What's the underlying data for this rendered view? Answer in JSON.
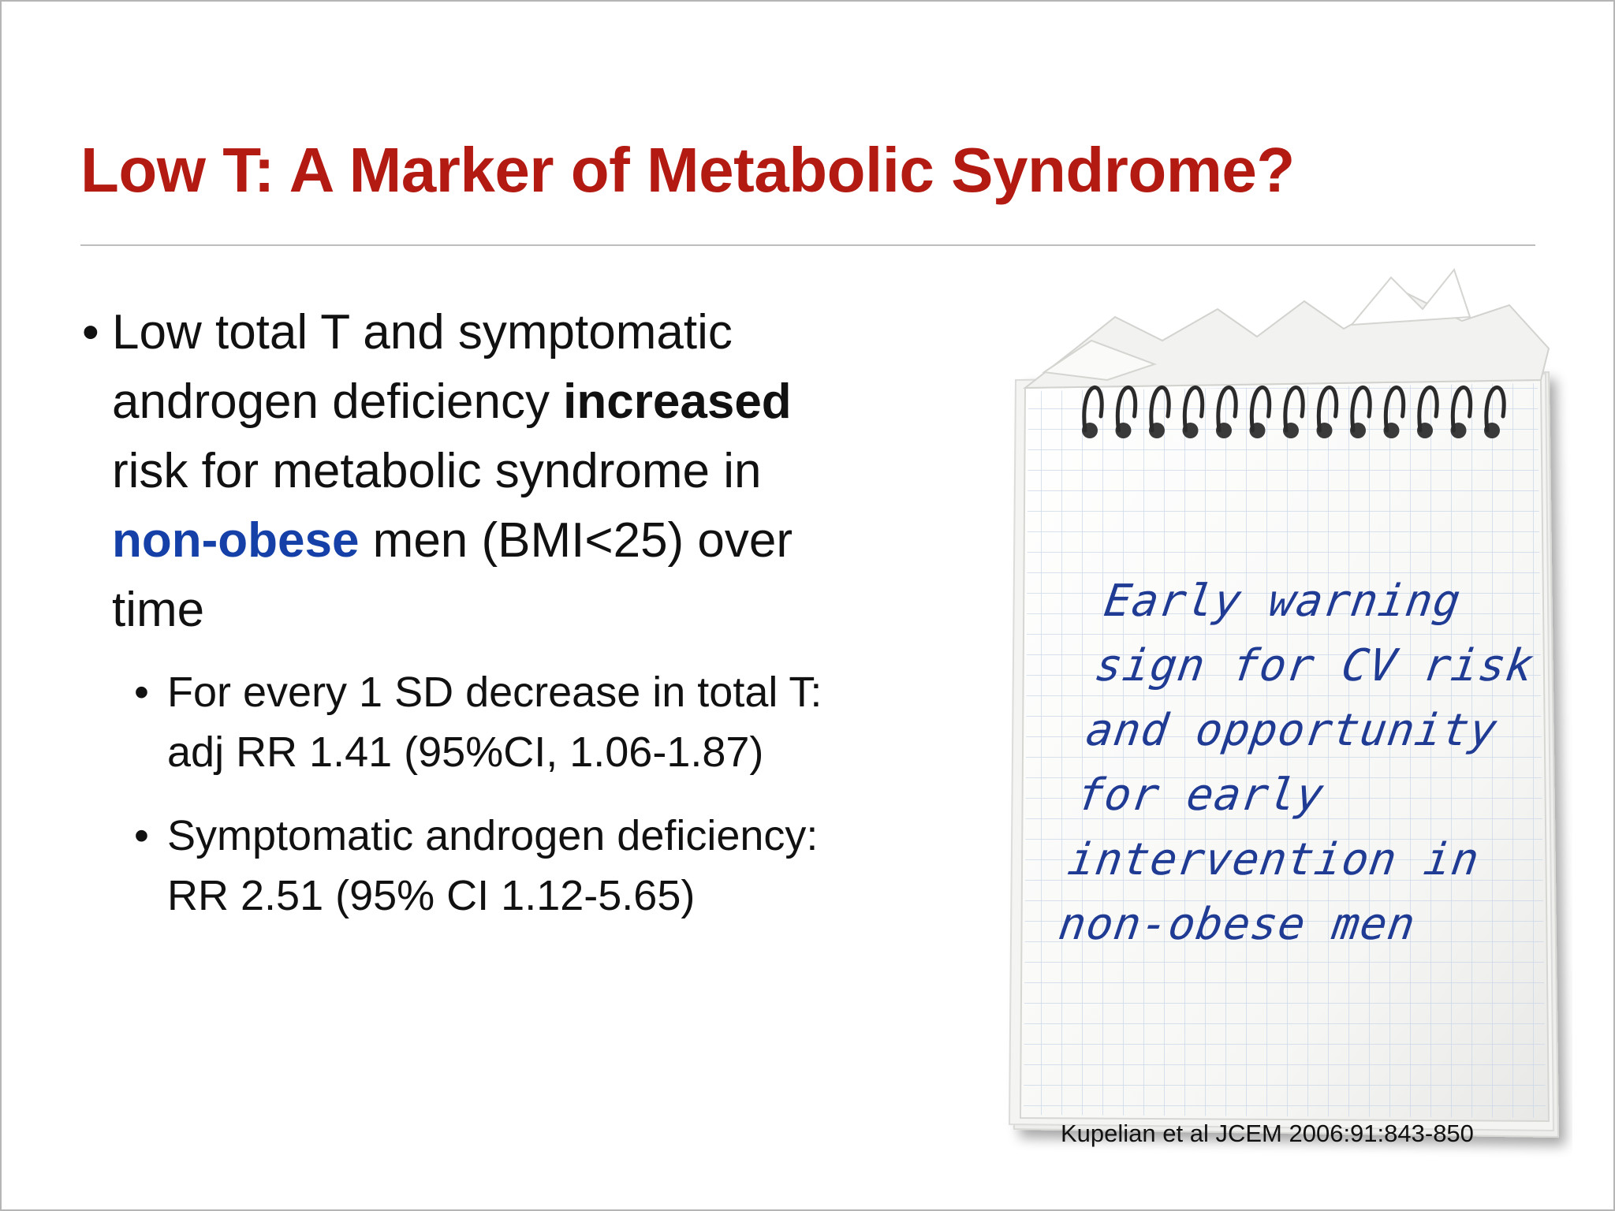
{
  "title": "Low T: A Marker of Metabolic Syndrome?",
  "main_bullet": {
    "bullet": "•",
    "line1": "Low total T and symptomatic",
    "line2_plain": "androgen deficiency ",
    "line2_emphasis": "increased",
    "line3": "risk for metabolic syndrome in",
    "line4_highlight": "non-obese",
    "line4_plain": " men (BMI<25) over",
    "line5": "time"
  },
  "sub_bullets": [
    {
      "bullet": "•",
      "line1": "For every 1 SD decrease in total T:",
      "line2": "adj RR 1.41 (95%CI, 1.06-1.87)"
    },
    {
      "bullet": "•",
      "line1": "Symptomatic androgen deficiency:",
      "line2": "RR 2.51 (95% CI 1.12-5.65)"
    }
  ],
  "notepad": {
    "lines": [
      "Early warning",
      "sign for CV risk",
      "and opportunity",
      "for early",
      "intervention in",
      "non-obese men"
    ],
    "ink_color": "#1f3b94"
  },
  "citation": "Kupelian et al JCEM 2006:91:843-850",
  "colors": {
    "title": "#b31a12",
    "highlight_blue": "#1440a8",
    "grid": "#c9d6e8"
  }
}
